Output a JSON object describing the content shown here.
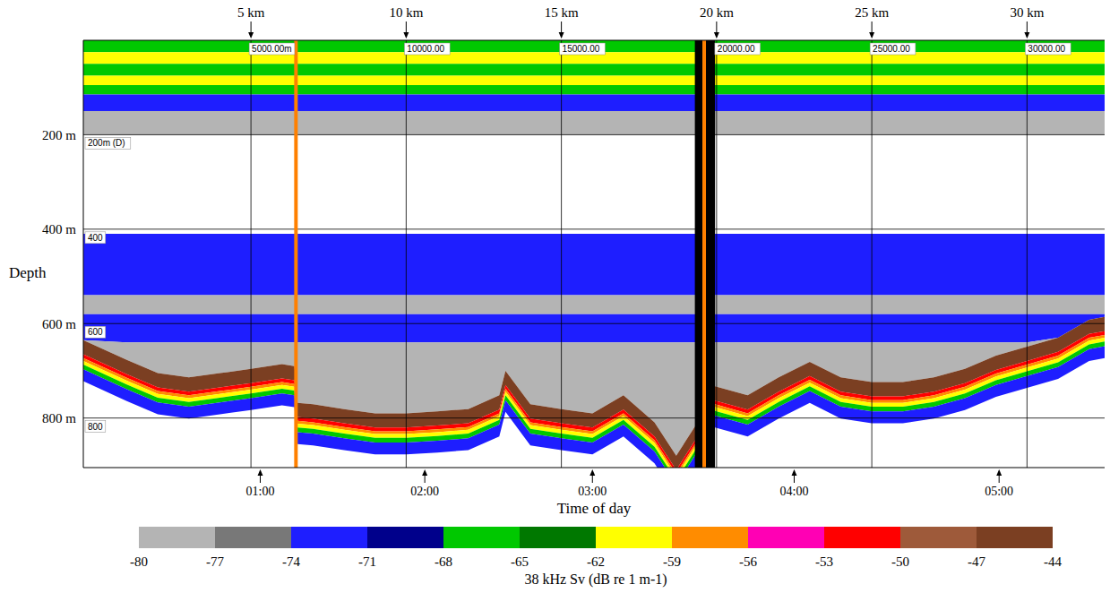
{
  "chart_data": {
    "type": "area",
    "stacked": true,
    "grid": true,
    "x_label": "Time of day",
    "y_label": "Depth",
    "x": [
      -0.4,
      1,
      2,
      3,
      4,
      5,
      6,
      6.4,
      6.5,
      7,
      8,
      9,
      10,
      11,
      12,
      13,
      13.2,
      14,
      15,
      16,
      17,
      18,
      18.7,
      19.3,
      19.95,
      21,
      22,
      23,
      24,
      25,
      26,
      27,
      28,
      29,
      30,
      31,
      32,
      32.5
    ],
    "xlim": [
      -0.4,
      32.5
    ],
    "xticks": [
      {
        "value": 5.3,
        "label": "01:00"
      },
      {
        "value": 10.6,
        "label": "02:00"
      },
      {
        "value": 16.0,
        "label": "03:00"
      },
      {
        "value": 22.5,
        "label": "04:00"
      },
      {
        "value": 29.1,
        "label": "05:00"
      }
    ],
    "distance_ticks": [
      {
        "value": 5,
        "label": "5 km"
      },
      {
        "value": 10,
        "label": "10 km"
      },
      {
        "value": 15,
        "label": "15 km"
      },
      {
        "value": 20,
        "label": "20 km"
      },
      {
        "value": 25,
        "label": "25 km"
      },
      {
        "value": 30,
        "label": "30 km"
      }
    ],
    "distance_marks": [
      {
        "value": 5,
        "label": "5000.00m"
      },
      {
        "value": 10,
        "label": "10000.00"
      },
      {
        "value": 15,
        "label": "15000.00"
      },
      {
        "value": 20,
        "label": "20000.00"
      },
      {
        "value": 25,
        "label": "25000.00"
      },
      {
        "value": 30,
        "label": "30000.00"
      }
    ],
    "ylim": [
      0,
      905
    ],
    "yticks": [
      {
        "value": 200,
        "label": "200 m"
      },
      {
        "value": 400,
        "label": "400 m"
      },
      {
        "value": 600,
        "label": "600 m"
      },
      {
        "value": 800,
        "label": "800 m"
      }
    ],
    "depth_marks": [
      {
        "value": 200,
        "label": "200m (D)"
      },
      {
        "value": 400,
        "label": "400"
      },
      {
        "value": 600,
        "label": "600"
      },
      {
        "value": 800,
        "label": "800"
      }
    ],
    "layers": [
      {
        "sv": -66,
        "values": [
          25,
          25,
          25,
          25,
          25,
          25,
          25,
          25,
          25,
          25,
          25,
          25,
          25,
          25,
          25,
          25,
          25,
          25,
          25,
          25,
          25,
          25,
          25,
          25,
          25,
          25,
          25,
          25,
          25,
          25,
          25,
          25,
          25,
          25,
          25,
          25,
          25,
          25
        ]
      },
      {
        "sv": -60,
        "values": [
          25,
          25,
          25,
          25,
          25,
          25,
          25,
          25,
          25,
          25,
          25,
          25,
          25,
          25,
          25,
          25,
          25,
          25,
          25,
          25,
          25,
          25,
          25,
          25,
          25,
          25,
          25,
          25,
          25,
          25,
          25,
          25,
          25,
          25,
          25,
          25,
          25,
          25
        ]
      },
      {
        "sv": -66,
        "values": [
          25,
          25,
          25,
          25,
          25,
          25,
          25,
          25,
          25,
          25,
          25,
          25,
          25,
          25,
          25,
          25,
          25,
          25,
          25,
          25,
          25,
          25,
          25,
          25,
          25,
          25,
          25,
          25,
          25,
          25,
          25,
          25,
          25,
          25,
          25,
          25,
          25,
          25
        ]
      },
      {
        "sv": -61,
        "values": [
          20,
          20,
          20,
          20,
          20,
          20,
          20,
          20,
          20,
          20,
          20,
          20,
          20,
          20,
          20,
          20,
          20,
          20,
          20,
          20,
          20,
          20,
          20,
          20,
          20,
          20,
          20,
          20,
          20,
          20,
          20,
          20,
          20,
          20,
          20,
          20,
          20,
          20
        ]
      },
      {
        "sv": -66,
        "values": [
          20,
          20,
          20,
          20,
          20,
          20,
          20,
          20,
          20,
          20,
          20,
          20,
          20,
          20,
          20,
          20,
          20,
          20,
          20,
          20,
          20,
          20,
          20,
          20,
          20,
          20,
          20,
          20,
          20,
          20,
          20,
          20,
          20,
          20,
          20,
          20,
          20,
          20
        ]
      },
      {
        "sv": -72,
        "values": [
          35,
          35,
          35,
          35,
          35,
          35,
          35,
          35,
          35,
          35,
          35,
          35,
          35,
          35,
          35,
          35,
          35,
          35,
          35,
          35,
          35,
          35,
          35,
          35,
          35,
          35,
          35,
          35,
          35,
          35,
          35,
          35,
          35,
          35,
          35,
          35,
          35,
          35
        ]
      },
      {
        "sv": -78,
        "values": [
          50,
          50,
          50,
          50,
          50,
          50,
          50,
          50,
          50,
          50,
          50,
          50,
          50,
          50,
          50,
          50,
          50,
          50,
          50,
          50,
          50,
          50,
          50,
          50,
          50,
          50,
          50,
          50,
          50,
          50,
          50,
          50,
          50,
          50,
          50,
          50,
          50,
          50
        ]
      },
      {
        "sv": -82,
        "values": [
          210,
          210,
          210,
          210,
          210,
          210,
          210,
          210,
          210,
          210,
          210,
          210,
          210,
          210,
          210,
          210,
          210,
          210,
          210,
          210,
          210,
          210,
          210,
          210,
          210,
          210,
          210,
          210,
          210,
          210,
          210,
          210,
          210,
          210,
          210,
          210,
          210,
          210
        ]
      },
      {
        "sv": -72,
        "values": [
          130,
          130,
          130,
          130,
          130,
          130,
          130,
          130,
          130,
          130,
          130,
          130,
          130,
          130,
          130,
          130,
          130,
          130,
          130,
          130,
          130,
          130,
          130,
          130,
          130,
          130,
          130,
          130,
          130,
          130,
          130,
          130,
          130,
          130,
          130,
          130,
          130,
          130
        ]
      },
      {
        "sv": -78,
        "values": [
          40,
          40,
          40,
          40,
          40,
          40,
          40,
          40,
          40,
          40,
          40,
          40,
          40,
          40,
          40,
          40,
          40,
          40,
          40,
          40,
          40,
          40,
          40,
          40,
          40,
          40,
          40,
          40,
          40,
          40,
          40,
          40,
          40,
          40,
          40,
          40,
          40,
          40
        ]
      },
      {
        "sv": -72,
        "values": [
          55,
          60,
          60,
          60,
          60,
          60,
          60,
          60,
          60,
          60,
          60,
          60,
          60,
          60,
          60,
          60,
          60,
          60,
          60,
          60,
          60,
          60,
          60,
          60,
          60,
          60,
          60,
          60,
          60,
          60,
          60,
          60,
          60,
          60,
          60,
          50,
          12,
          6
        ]
      },
      {
        "sv": -78,
        "values": [
          0,
          37,
          65,
          74,
          65,
          56,
          46,
          50,
          128,
          131,
          141,
          150,
          150,
          146,
          141,
          112,
          60,
          131,
          141,
          150,
          112,
          169,
          240,
          178,
          93,
          112,
          74,
          41,
          74,
          84,
          84,
          74,
          56,
          28,
          9,
          0,
          0,
          0
        ]
      },
      {
        "sv": -45,
        "values": [
          30,
          30,
          30,
          30,
          30,
          30,
          30,
          30,
          30,
          30,
          30,
          30,
          30,
          30,
          30,
          30,
          30,
          30,
          30,
          30,
          30,
          30,
          30,
          30,
          30,
          30,
          30,
          30,
          30,
          30,
          30,
          30,
          30,
          30,
          30,
          30,
          30,
          30
        ]
      },
      {
        "sv": -52,
        "values": [
          8,
          8,
          8,
          8,
          8,
          8,
          8,
          8,
          8,
          8,
          8,
          8,
          8,
          8,
          8,
          8,
          8,
          8,
          8,
          8,
          8,
          8,
          8,
          8,
          8,
          8,
          8,
          8,
          8,
          8,
          8,
          8,
          8,
          8,
          8,
          8,
          8,
          8
        ]
      },
      {
        "sv": -57,
        "values": [
          6,
          6,
          6,
          6,
          6,
          6,
          6,
          6,
          6,
          6,
          6,
          6,
          6,
          6,
          6,
          6,
          6,
          6,
          6,
          6,
          6,
          6,
          6,
          6,
          6,
          6,
          6,
          6,
          6,
          6,
          6,
          6,
          6,
          6,
          6,
          6,
          6,
          6
        ]
      },
      {
        "sv": -60,
        "values": [
          8,
          8,
          8,
          8,
          8,
          8,
          8,
          8,
          8,
          8,
          8,
          8,
          8,
          8,
          8,
          8,
          8,
          8,
          8,
          8,
          8,
          8,
          8,
          8,
          8,
          8,
          8,
          8,
          8,
          8,
          8,
          8,
          8,
          8,
          8,
          8,
          8,
          8
        ]
      },
      {
        "sv": -66,
        "values": [
          10,
          10,
          10,
          10,
          10,
          10,
          10,
          10,
          10,
          10,
          10,
          10,
          10,
          10,
          10,
          10,
          10,
          10,
          10,
          10,
          10,
          10,
          10,
          10,
          10,
          10,
          10,
          10,
          10,
          10,
          10,
          10,
          10,
          10,
          10,
          10,
          10,
          10
        ]
      },
      {
        "sv": -72,
        "values": [
          25,
          25,
          25,
          25,
          25,
          25,
          25,
          25,
          25,
          25,
          25,
          25,
          25,
          25,
          25,
          25,
          25,
          25,
          25,
          25,
          25,
          25,
          25,
          25,
          25,
          25,
          25,
          25,
          25,
          25,
          25,
          25,
          25,
          25,
          25,
          25,
          25,
          25
        ]
      }
    ],
    "section_lines": [
      6.45,
      19.6
    ],
    "no_data": [
      19.3,
      19.95
    ],
    "colorbar": {
      "range": [
        -80,
        -44
      ],
      "ticks": [
        -80,
        -77,
        -74,
        -71,
        -68,
        -65,
        -62,
        -59,
        -56,
        -53,
        -50,
        -47,
        -44
      ],
      "colors": [
        "#b4b4b4",
        "#787878",
        "#1e1eff",
        "#00008b",
        "#00c800",
        "#007800",
        "#ffff00",
        "#ff8c00",
        "#ff00b4",
        "#ff0000",
        "#9e5a3a",
        "#7b3f22"
      ],
      "label": "38 kHz Sv (dB re 1 m-1)"
    }
  }
}
